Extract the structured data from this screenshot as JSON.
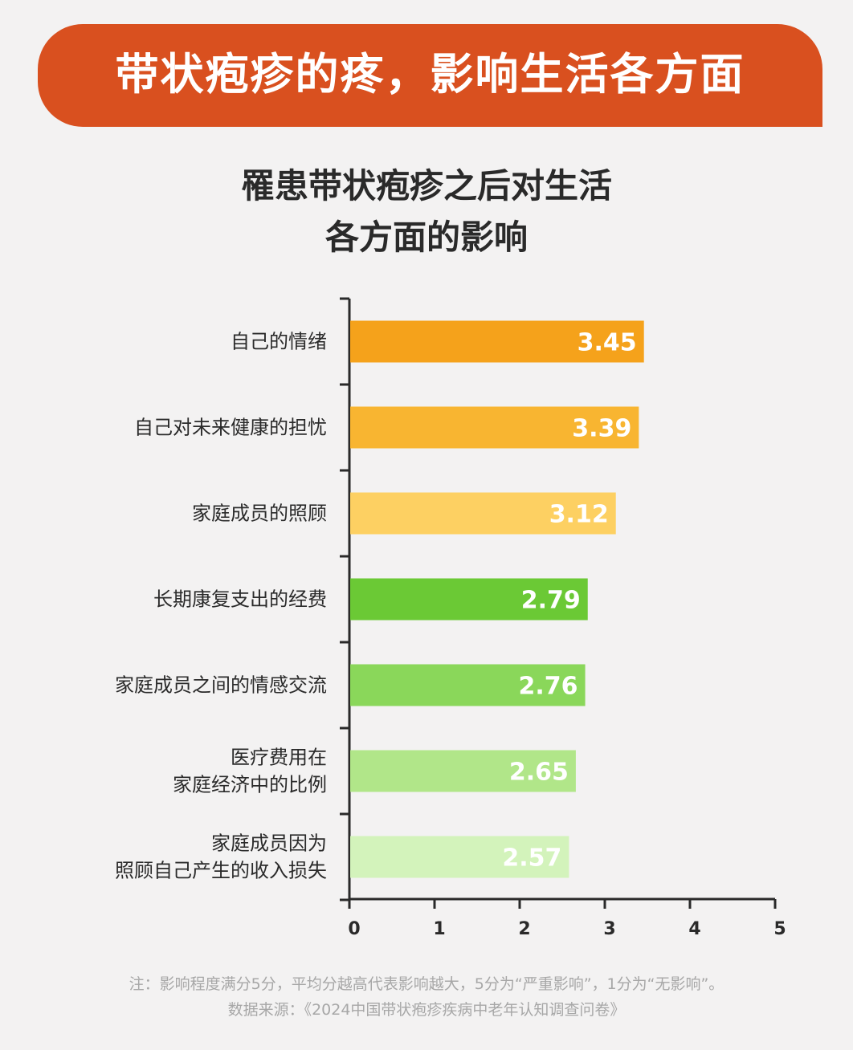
{
  "banner": {
    "title": "带状疱疹的疼，影响生活各方面"
  },
  "chart_data": {
    "type": "bar",
    "orientation": "horizontal",
    "title_lines": [
      "罹患带状疱疹之后对生活",
      "各方面的影响"
    ],
    "categories": [
      [
        "自己的情绪"
      ],
      [
        "自己对未来健康的担忧"
      ],
      [
        "家庭成员的照顾"
      ],
      [
        "长期康复支出的经费"
      ],
      [
        "家庭成员之间的情感交流"
      ],
      [
        "医疗费用在",
        "家庭经济中的比例"
      ],
      [
        "家庭成员因为",
        "照顾自己产生的收入损失"
      ]
    ],
    "values": [
      3.45,
      3.39,
      3.12,
      2.79,
      2.76,
      2.65,
      2.57
    ],
    "value_labels": [
      "3.45",
      "3.39",
      "3.12",
      "2.79",
      "2.76",
      "2.65",
      "2.57"
    ],
    "colors": [
      "#f5a21b",
      "#f8b531",
      "#fdd062",
      "#6bc935",
      "#8ad75a",
      "#b1e689",
      "#d3f3bb"
    ],
    "xlim": [
      0,
      5
    ],
    "x_ticks": [
      "0",
      "1",
      "2",
      "3",
      "4",
      "5"
    ],
    "xlabel": "",
    "ylabel": "",
    "grid": false
  },
  "footnote": {
    "line1": "注：影响程度满分5分，平均分越高代表影响越大，5分为“严重影响”，1分为“无影响”。",
    "line2": "数据来源：《2024中国带状疱疹疾病中老年认知调查问卷》"
  }
}
